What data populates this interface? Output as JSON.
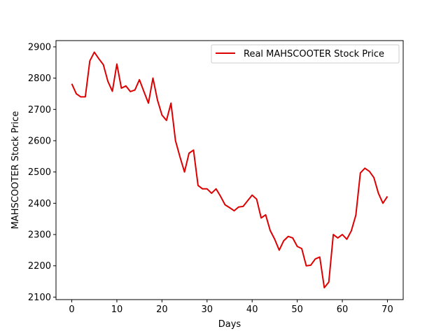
{
  "chart_data": {
    "type": "line",
    "xlabel": "Days",
    "ylabel": "MAHSCOOTER Stock Price",
    "xlim": [
      -3.5,
      73.5
    ],
    "ylim": [
      2092,
      2920
    ],
    "xticks": [
      0,
      10,
      20,
      30,
      40,
      50,
      60,
      70
    ],
    "yticks": [
      2100,
      2200,
      2300,
      2400,
      2500,
      2600,
      2700,
      2800,
      2900
    ],
    "grid": false,
    "legend": {
      "placement": "top-right"
    },
    "series": [
      {
        "name": "Real MAHSCOOTER Stock Price",
        "color": "#dd0000",
        "x": [
          0,
          1,
          2,
          3,
          4,
          5,
          6,
          7,
          8,
          9,
          10,
          11,
          12,
          13,
          14,
          15,
          16,
          17,
          18,
          19,
          20,
          21,
          22,
          23,
          24,
          25,
          26,
          27,
          28,
          29,
          30,
          31,
          32,
          33,
          34,
          35,
          36,
          37,
          38,
          39,
          40,
          41,
          42,
          43,
          44,
          45,
          46,
          47,
          48,
          49,
          50,
          51,
          52,
          53,
          54,
          55,
          56,
          57,
          58,
          59,
          60,
          61,
          62,
          63,
          64,
          65,
          66,
          67,
          68,
          69,
          70
        ],
        "values": [
          2782,
          2750,
          2740,
          2740,
          2855,
          2883,
          2862,
          2843,
          2790,
          2758,
          2845,
          2768,
          2775,
          2757,
          2762,
          2795,
          2757,
          2720,
          2800,
          2730,
          2682,
          2665,
          2720,
          2600,
          2548,
          2500,
          2560,
          2570,
          2457,
          2446,
          2446,
          2432,
          2446,
          2422,
          2395,
          2386,
          2376,
          2388,
          2390,
          2408,
          2426,
          2413,
          2353,
          2363,
          2313,
          2285,
          2250,
          2280,
          2294,
          2289,
          2262,
          2255,
          2200,
          2202,
          2222,
          2228,
          2130,
          2148,
          2300,
          2289,
          2300,
          2285,
          2312,
          2362,
          2497,
          2512,
          2502,
          2482,
          2432,
          2400,
          2422
        ]
      }
    ]
  }
}
